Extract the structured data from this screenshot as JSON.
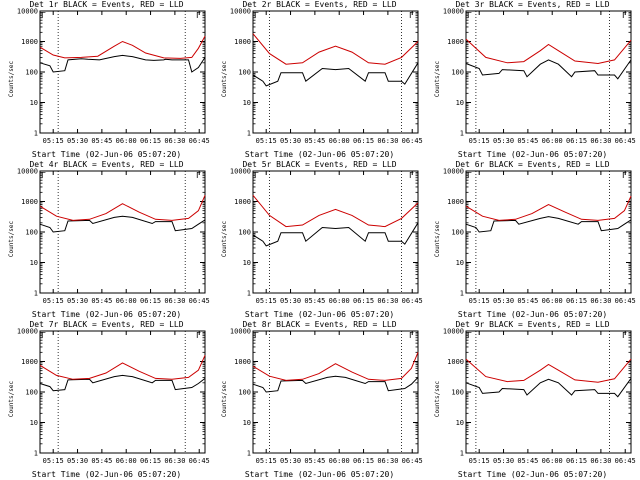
{
  "chart_data": [
    {
      "type": "line",
      "title": "Det 1r BLACK = Events, RED = LLD",
      "xlabel": "Start Time (02-Jun-06 05:07:20)",
      "ylabel": "Counts/sec",
      "yscale": "log",
      "ylim": [
        1,
        10000
      ],
      "x_ticks": [
        "05:15",
        "05:30",
        "05:45",
        "06:00",
        "06:15",
        "06:30",
        "06:45"
      ],
      "y_ticks": [
        "1",
        "10",
        "100",
        "1000",
        "10000"
      ],
      "corner_mark": "Γ",
      "series": [
        {
          "color": "#000000",
          "x": [
            0,
            0.06,
            0.08,
            0.15,
            0.17,
            0.25,
            0.29,
            0.36,
            0.45,
            0.5,
            0.56,
            0.64,
            0.69,
            0.75,
            0.76,
            0.8,
            0.9,
            0.92,
            0.96,
            1
          ],
          "y": [
            200,
            160,
            100,
            110,
            250,
            270,
            260,
            250,
            320,
            350,
            320,
            250,
            240,
            250,
            260,
            250,
            250,
            100,
            140,
            300
          ]
        },
        {
          "color": "#cc0000",
          "x": [
            0,
            0.08,
            0.15,
            0.25,
            0.35,
            0.45,
            0.5,
            0.56,
            0.64,
            0.75,
            0.85,
            0.92,
            0.96,
            1
          ],
          "y": [
            650,
            360,
            290,
            300,
            330,
            700,
            1000,
            750,
            420,
            290,
            280,
            300,
            600,
            1500
          ]
        }
      ],
      "vlines": [
        0.11,
        0.88
      ]
    },
    {
      "type": "line",
      "title": "Det 2r BLACK = Events, RED = LLD",
      "xlabel": "Start Time (02-Jun-06 05:07:20)",
      "ylabel": "Counts/sec",
      "yscale": "log",
      "ylim": [
        1,
        10000
      ],
      "x_ticks": [
        "05:15",
        "05:30",
        "05:45",
        "06:00",
        "06:15",
        "06:30",
        "06:45"
      ],
      "y_ticks": [
        "1",
        "10",
        "100",
        "1000",
        "10000"
      ],
      "corner_mark": "Γ",
      "series": [
        {
          "color": "#000000",
          "x": [
            0,
            0.06,
            0.08,
            0.15,
            0.17,
            0.3,
            0.32,
            0.42,
            0.5,
            0.58,
            0.68,
            0.7,
            0.8,
            0.82,
            0.9,
            0.92,
            1
          ],
          "y": [
            80,
            50,
            35,
            50,
            95,
            95,
            50,
            130,
            120,
            130,
            50,
            95,
            95,
            50,
            50,
            40,
            200
          ]
        },
        {
          "color": "#cc0000",
          "x": [
            0,
            0.1,
            0.2,
            0.3,
            0.4,
            0.5,
            0.6,
            0.7,
            0.8,
            0.9,
            1
          ],
          "y": [
            1800,
            400,
            180,
            200,
            450,
            700,
            450,
            200,
            180,
            300,
            1000
          ]
        }
      ],
      "vlines": [
        0.1,
        0.9
      ]
    },
    {
      "type": "line",
      "title": "Det 3r BLACK = Events, RED = LLD",
      "xlabel": "Start Time (02-Jun-06 05:07:20)",
      "ylabel": "Counts/sec",
      "yscale": "log",
      "ylim": [
        1,
        10000
      ],
      "x_ticks": [
        "05:15",
        "05:30",
        "05:45",
        "06:00",
        "06:15",
        "06:30",
        "06:45"
      ],
      "y_ticks": [
        "1",
        "10",
        "100",
        "1000",
        "10000"
      ],
      "corner_mark": "Γ",
      "series": [
        {
          "color": "#000000",
          "x": [
            0,
            0.08,
            0.1,
            0.2,
            0.22,
            0.35,
            0.37,
            0.45,
            0.5,
            0.56,
            0.64,
            0.66,
            0.78,
            0.8,
            0.9,
            0.92,
            1
          ],
          "y": [
            190,
            130,
            80,
            90,
            120,
            110,
            70,
            180,
            250,
            180,
            70,
            100,
            110,
            80,
            80,
            60,
            250
          ]
        },
        {
          "color": "#cc0000",
          "x": [
            0,
            0.12,
            0.25,
            0.35,
            0.45,
            0.5,
            0.56,
            0.66,
            0.8,
            0.9,
            1
          ],
          "y": [
            1200,
            300,
            200,
            220,
            500,
            800,
            500,
            230,
            190,
            250,
            1100
          ]
        }
      ],
      "vlines": [
        0.06,
        0.87
      ]
    },
    {
      "type": "line",
      "title": "Det 4r BLACK = Events, RED = LLD",
      "xlabel": "Start Time (02-Jun-06 05:07:20)",
      "ylabel": "Counts/sec",
      "yscale": "log",
      "ylim": [
        1,
        10000
      ],
      "x_ticks": [
        "05:15",
        "05:30",
        "05:45",
        "06:00",
        "06:15",
        "06:30",
        "06:45"
      ],
      "y_ticks": [
        "1",
        "10",
        "100",
        "1000",
        "10000"
      ],
      "corner_mark": "Γ",
      "series": [
        {
          "color": "#000000",
          "x": [
            0,
            0.06,
            0.08,
            0.15,
            0.17,
            0.3,
            0.32,
            0.45,
            0.5,
            0.56,
            0.68,
            0.7,
            0.8,
            0.82,
            0.92,
            0.96,
            1
          ],
          "y": [
            180,
            140,
            100,
            110,
            230,
            240,
            190,
            300,
            330,
            300,
            190,
            220,
            220,
            110,
            130,
            180,
            250
          ]
        },
        {
          "color": "#cc0000",
          "x": [
            0,
            0.1,
            0.2,
            0.3,
            0.4,
            0.5,
            0.6,
            0.7,
            0.8,
            0.9,
            0.96,
            1
          ],
          "y": [
            700,
            330,
            240,
            260,
            400,
            850,
            450,
            260,
            240,
            280,
            500,
            1600
          ]
        }
      ],
      "vlines": [
        0.11,
        0.88
      ]
    },
    {
      "type": "line",
      "title": "Det 5r BLACK = Events, RED = LLD",
      "xlabel": "Start Time (02-Jun-06 05:07:20)",
      "ylabel": "Counts/sec",
      "yscale": "log",
      "ylim": [
        1,
        10000
      ],
      "x_ticks": [
        "05:15",
        "05:30",
        "05:45",
        "06:00",
        "06:15",
        "06:30",
        "06:45"
      ],
      "y_ticks": [
        "1",
        "10",
        "100",
        "1000",
        "10000"
      ],
      "corner_mark": "Γ",
      "series": [
        {
          "color": "#000000",
          "x": [
            0,
            0.06,
            0.08,
            0.15,
            0.17,
            0.3,
            0.32,
            0.42,
            0.5,
            0.58,
            0.68,
            0.7,
            0.8,
            0.82,
            0.9,
            0.92,
            1
          ],
          "y": [
            80,
            50,
            35,
            50,
            95,
            95,
            50,
            140,
            130,
            140,
            50,
            95,
            95,
            50,
            50,
            40,
            200
          ]
        },
        {
          "color": "#cc0000",
          "x": [
            0,
            0.1,
            0.2,
            0.3,
            0.4,
            0.5,
            0.6,
            0.7,
            0.8,
            0.9,
            1
          ],
          "y": [
            1600,
            350,
            150,
            170,
            350,
            550,
            350,
            170,
            150,
            280,
            900
          ]
        }
      ],
      "vlines": [
        0.1,
        0.9
      ]
    },
    {
      "type": "line",
      "title": "Det 6r BLACK = Events, RED = LLD",
      "xlabel": "Start Time (02-Jun-06 05:07:20)",
      "ylabel": "Counts/sec",
      "yscale": "log",
      "ylim": [
        1,
        10000
      ],
      "x_ticks": [
        "05:15",
        "05:30",
        "05:45",
        "06:00",
        "06:15",
        "06:30",
        "06:45"
      ],
      "y_ticks": [
        "1",
        "10",
        "100",
        "1000",
        "10000"
      ],
      "corner_mark": "Γ",
      "series": [
        {
          "color": "#000000",
          "x": [
            0,
            0.06,
            0.08,
            0.15,
            0.17,
            0.3,
            0.32,
            0.45,
            0.5,
            0.56,
            0.68,
            0.7,
            0.8,
            0.82,
            0.92,
            0.96,
            1
          ],
          "y": [
            180,
            140,
            100,
            110,
            230,
            240,
            180,
            280,
            320,
            280,
            180,
            220,
            220,
            110,
            130,
            180,
            250
          ]
        },
        {
          "color": "#cc0000",
          "x": [
            0,
            0.1,
            0.2,
            0.3,
            0.4,
            0.5,
            0.6,
            0.7,
            0.8,
            0.9,
            0.96,
            1
          ],
          "y": [
            700,
            330,
            240,
            260,
            400,
            800,
            450,
            260,
            240,
            280,
            500,
            1500
          ]
        }
      ],
      "vlines": [
        0.06,
        0.87
      ]
    },
    {
      "type": "line",
      "title": "Det 7r BLACK = Events, RED = LLD",
      "xlabel": "Start Time (02-Jun-06 05:07:20)",
      "ylabel": "Counts/sec",
      "yscale": "log",
      "ylim": [
        1,
        10000
      ],
      "x_ticks": [
        "05:15",
        "05:30",
        "05:45",
        "06:00",
        "06:15",
        "06:30",
        "06:45"
      ],
      "y_ticks": [
        "1",
        "10",
        "100",
        "1000",
        "10000"
      ],
      "corner_mark": "Γ",
      "series": [
        {
          "color": "#000000",
          "x": [
            0,
            0.06,
            0.08,
            0.15,
            0.17,
            0.3,
            0.32,
            0.45,
            0.5,
            0.56,
            0.68,
            0.7,
            0.8,
            0.82,
            0.92,
            0.96,
            1
          ],
          "y": [
            190,
            150,
            110,
            120,
            250,
            260,
            200,
            320,
            350,
            320,
            200,
            240,
            240,
            120,
            140,
            190,
            280
          ]
        },
        {
          "color": "#cc0000",
          "x": [
            0,
            0.1,
            0.2,
            0.3,
            0.4,
            0.5,
            0.6,
            0.7,
            0.8,
            0.9,
            0.96,
            1
          ],
          "y": [
            750,
            350,
            260,
            280,
            420,
            900,
            480,
            280,
            260,
            300,
            520,
            1600
          ]
        }
      ],
      "vlines": [
        0.11,
        0.88
      ]
    },
    {
      "type": "line",
      "title": "Det 8r BLACK = Events, RED = LLD",
      "xlabel": "Start Time (02-Jun-06 05:07:20)",
      "ylabel": "Counts/sec",
      "yscale": "log",
      "ylim": [
        1,
        10000
      ],
      "x_ticks": [
        "05:15",
        "05:30",
        "05:45",
        "06:00",
        "06:15",
        "06:30",
        "06:45"
      ],
      "y_ticks": [
        "1",
        "10",
        "100",
        "1000",
        "10000"
      ],
      "corner_mark": "Γ",
      "series": [
        {
          "color": "#000000",
          "x": [
            0,
            0.06,
            0.08,
            0.15,
            0.17,
            0.3,
            0.32,
            0.45,
            0.5,
            0.56,
            0.68,
            0.7,
            0.8,
            0.82,
            0.92,
            0.96,
            1
          ],
          "y": [
            180,
            140,
            100,
            110,
            230,
            240,
            190,
            300,
            330,
            300,
            190,
            220,
            220,
            110,
            130,
            180,
            300
          ]
        },
        {
          "color": "#cc0000",
          "x": [
            0,
            0.1,
            0.2,
            0.3,
            0.4,
            0.5,
            0.6,
            0.7,
            0.8,
            0.9,
            0.96,
            1
          ],
          "y": [
            700,
            330,
            240,
            260,
            400,
            850,
            450,
            260,
            240,
            280,
            600,
            2000
          ]
        }
      ],
      "vlines": [
        0.1,
        0.9
      ]
    },
    {
      "type": "line",
      "title": "Det 9r BLACK = Events, RED = LLD",
      "xlabel": "Start Time (02-Jun-06 05:07:20)",
      "ylabel": "Counts/sec",
      "yscale": "log",
      "ylim": [
        1,
        10000
      ],
      "x_ticks": [
        "05:15",
        "05:30",
        "05:45",
        "06:00",
        "06:15",
        "06:30",
        "06:45"
      ],
      "y_ticks": [
        "1",
        "10",
        "100",
        "1000",
        "10000"
      ],
      "corner_mark": "Γ",
      "series": [
        {
          "color": "#000000",
          "x": [
            0,
            0.08,
            0.1,
            0.2,
            0.22,
            0.35,
            0.37,
            0.45,
            0.5,
            0.56,
            0.64,
            0.66,
            0.78,
            0.8,
            0.9,
            0.92,
            1
          ],
          "y": [
            200,
            140,
            90,
            100,
            130,
            120,
            80,
            200,
            260,
            200,
            80,
            110,
            120,
            90,
            90,
            70,
            280
          ]
        },
        {
          "color": "#cc0000",
          "x": [
            0,
            0.12,
            0.25,
            0.35,
            0.45,
            0.5,
            0.56,
            0.66,
            0.8,
            0.9,
            1
          ],
          "y": [
            1200,
            320,
            220,
            240,
            520,
            800,
            520,
            250,
            210,
            270,
            1200
          ]
        }
      ],
      "vlines": [
        0.06,
        0.87
      ]
    }
  ]
}
